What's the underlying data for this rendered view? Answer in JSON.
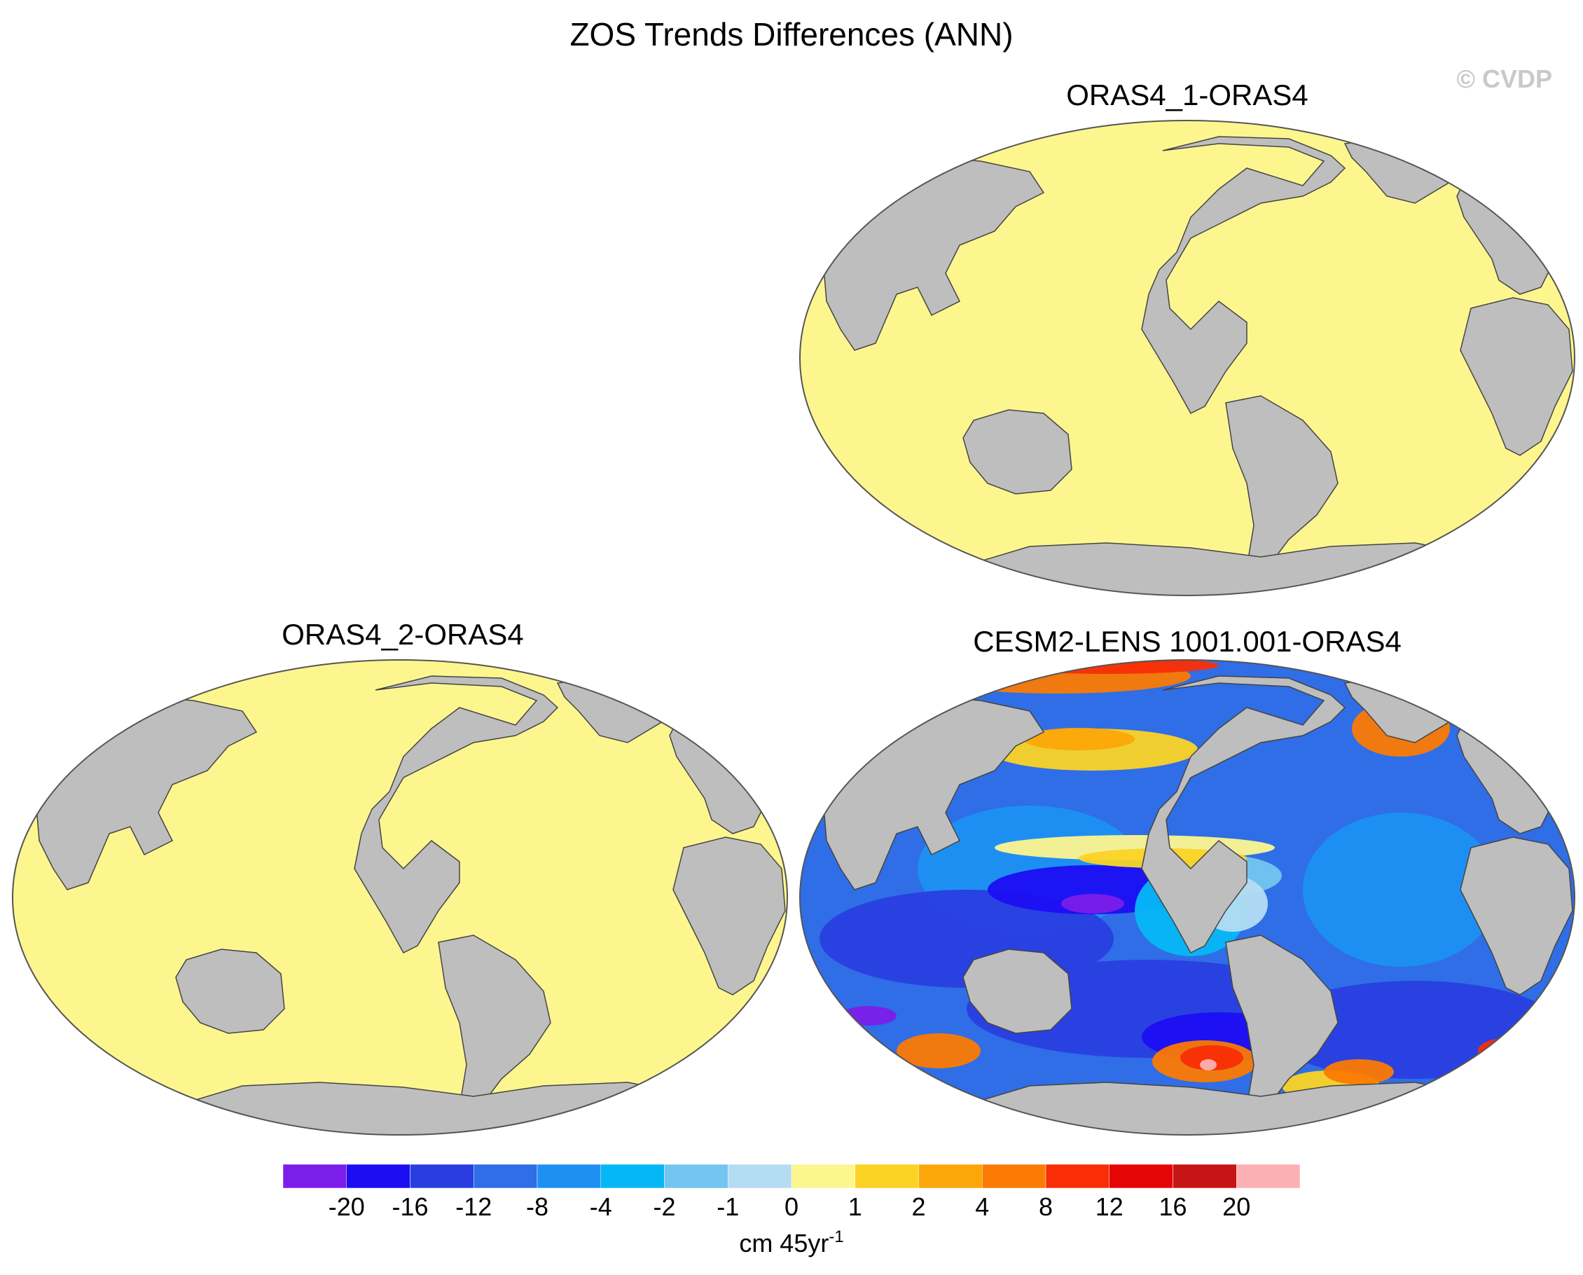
{
  "title": "ZOS Trends Differences (ANN)",
  "copyright": "© CVDP",
  "panels": [
    {
      "title": "ORAS4_1-ORAS4",
      "field": "uniform",
      "range_class": "0 to 1"
    },
    {
      "title": "ORAS4_2-ORAS4",
      "field": "uniform",
      "range_class": "0 to 1"
    },
    {
      "title": "CESM2-LENS 1001.001-ORAS4",
      "field": "varying",
      "range_class": "mostly -20 to -2, positive bands in mid-latitudes"
    }
  ],
  "colorbar": {
    "labels": [
      "-20",
      "-16",
      "-12",
      "-8",
      "-4",
      "-2",
      "-1",
      "0",
      "1",
      "2",
      "4",
      "8",
      "12",
      "16",
      "20"
    ],
    "colors": [
      "#7b1ee9",
      "#1c0ef2",
      "#2a3ee0",
      "#2f6ee6",
      "#1e90f2",
      "#06b7f5",
      "#74c4f0",
      "#b4dcf2",
      "#fdf68f",
      "#fbd325",
      "#fba70a",
      "#fb7a03",
      "#f92e06",
      "#e40505",
      "#c71414",
      "#fbb0b4"
    ],
    "units_base": "cm 45yr",
    "units_exp": "-1"
  },
  "colors": {
    "land": "#bebebe",
    "uniform_ocean": "#fdf68f",
    "outline": "#555555"
  }
}
